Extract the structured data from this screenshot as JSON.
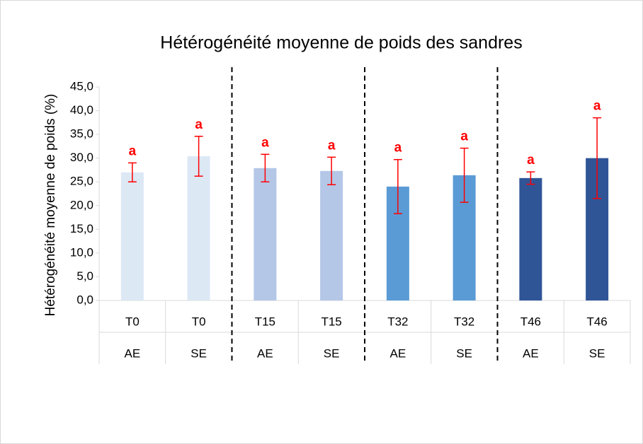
{
  "chart_data": {
    "type": "bar",
    "title": "Hétérogénéité moyenne de poids des sandres",
    "y_label": "Hétérogénéité moyenne de poids (%)",
    "categories": [
      "T0",
      "T0",
      "T15",
      "T15",
      "T32",
      "T32",
      "T46",
      "T46"
    ],
    "subcategories": [
      "AE",
      "SE",
      "AE",
      "SE",
      "AE",
      "SE",
      "AE",
      "SE"
    ],
    "values": [
      27.0,
      30.4,
      27.9,
      27.3,
      24.0,
      26.4,
      25.8,
      30.0
    ],
    "errors": [
      2.0,
      4.2,
      2.9,
      2.9,
      5.7,
      5.7,
      1.3,
      8.5
    ],
    "annotations": [
      "a",
      "a",
      "a",
      "a",
      "a",
      "a",
      "a",
      "a"
    ],
    "colors": [
      "#dde8f5",
      "#dde8f5",
      "#b4c7e7",
      "#b4c7e7",
      "#5b9bd5",
      "#5b9bd5",
      "#2f5597",
      "#2f5597"
    ],
    "error_color": "#ff0000",
    "ylim": [
      0,
      45
    ],
    "yticks": [
      {
        "value": 0,
        "label": "0,0"
      },
      {
        "value": 5,
        "label": "5,0"
      },
      {
        "value": 10,
        "label": "10,0"
      },
      {
        "value": 15,
        "label": "15,0"
      },
      {
        "value": 20,
        "label": "20,0"
      },
      {
        "value": 25,
        "label": "25,0"
      },
      {
        "value": 30,
        "label": "30,0"
      },
      {
        "value": 35,
        "label": "35,0"
      },
      {
        "value": 40,
        "label": "40,0"
      },
      {
        "value": 45,
        "label": "45,0"
      }
    ]
  }
}
